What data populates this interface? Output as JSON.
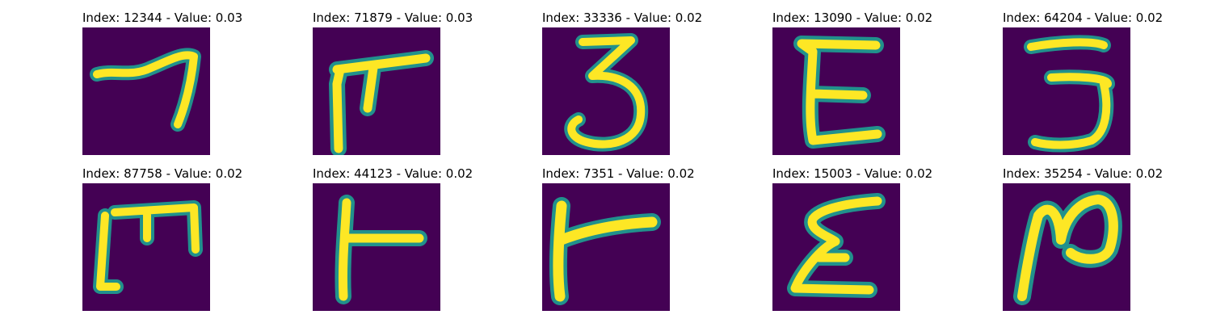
{
  "figure": {
    "panels": [
      {
        "title": "Index: 12344 - Value: 0.03",
        "glyph": "digit-7-like"
      },
      {
        "title": "Index: 71879 - Value: 0.03",
        "glyph": "pi-like"
      },
      {
        "title": "Index: 33336 - Value: 0.02",
        "glyph": "digit-3"
      },
      {
        "title": "Index: 13090 - Value: 0.02",
        "glyph": "letter-E"
      },
      {
        "title": "Index: 64204 - Value: 0.02",
        "glyph": "digit-3"
      },
      {
        "title": "Index: 87758 - Value: 0.02",
        "glyph": "bracket-m-like"
      },
      {
        "title": "Index: 44123 - Value: 0.02",
        "glyph": "t-like"
      },
      {
        "title": "Index: 7351 - Value: 0.02",
        "glyph": "r-like"
      },
      {
        "title": "Index: 15003 - Value: 0.02",
        "glyph": "sigma-like"
      },
      {
        "title": "Index: 35254 - Value: 0.02",
        "glyph": "n-like"
      }
    ],
    "colors": {
      "background": "#440154",
      "stroke_outer": "#21918c",
      "stroke_inner": "#fde725"
    }
  }
}
